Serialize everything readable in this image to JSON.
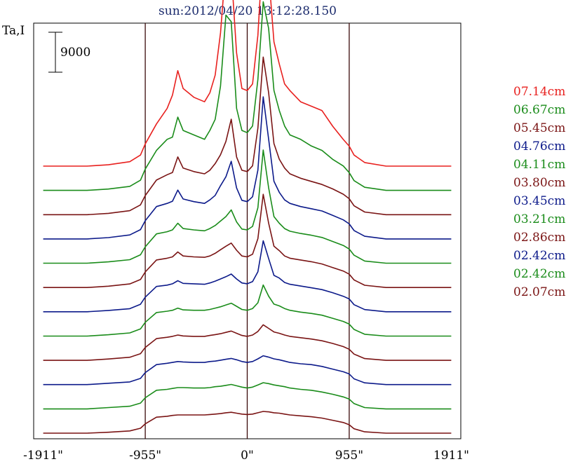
{
  "chart_data": {
    "type": "line",
    "title": "sun:2012/04/20 13:12:28.150",
    "ylabel": "Ta,I",
    "scale_bar_label": "9000",
    "xlim": [
      -2000,
      2000
    ],
    "x_ticks": [
      {
        "value": -1911,
        "label": "-1911\""
      },
      {
        "value": -955,
        "label": "-955\""
      },
      {
        "value": 0,
        "label": "0\""
      },
      {
        "value": 955,
        "label": "955\""
      },
      {
        "value": 1911,
        "label": "1911\""
      }
    ],
    "vertical_lines": [
      {
        "value": -955,
        "color": "#3a0a0a"
      },
      {
        "value": 0,
        "color": "#3a0a0a"
      },
      {
        "value": 955,
        "color": "#3a0a0a"
      }
    ],
    "x": [
      -1911,
      -1700,
      -1500,
      -1300,
      -1100,
      -1000,
      -955,
      -850,
      -750,
      -700,
      -650,
      -600,
      -500,
      -400,
      -350,
      -300,
      -250,
      -200,
      -150,
      -100,
      -50,
      0,
      50,
      100,
      150,
      200,
      250,
      300,
      350,
      400,
      500,
      600,
      700,
      800,
      900,
      955,
      1000,
      1100,
      1300,
      1500,
      1700,
      1911
    ],
    "series": [
      {
        "name": "07.14cm",
        "color": "#e8201e",
        "offset": 0,
        "values": [
          0,
          0,
          0,
          300,
          1000,
          2500,
          5000,
          9500,
          13000,
          16000,
          21500,
          17500,
          15500,
          14500,
          16500,
          20500,
          30000,
          45500,
          44000,
          25500,
          17500,
          17000,
          18500,
          29500,
          50000,
          43500,
          28000,
          23000,
          18500,
          17000,
          14500,
          13500,
          12500,
          9000,
          6000,
          4500,
          2500,
          800,
          0,
          0,
          0,
          0
        ]
      },
      {
        "name": "06.67cm",
        "color": "#1a8c1a",
        "offset": 0,
        "values": [
          0,
          0,
          0,
          300,
          900,
          2300,
          4800,
          9000,
          11500,
          12000,
          16500,
          13500,
          12500,
          11500,
          13500,
          16000,
          23500,
          39500,
          38000,
          18500,
          13500,
          13000,
          14500,
          25000,
          42500,
          36500,
          22500,
          18000,
          14500,
          12500,
          11500,
          10000,
          9000,
          7000,
          5500,
          4000,
          2200,
          700,
          0,
          0,
          0,
          0
        ]
      },
      {
        "name": "05.45cm",
        "color": "#7a1414",
        "offset": 0,
        "values": [
          0,
          0,
          0,
          300,
          900,
          2200,
          4300,
          7800,
          9000,
          9500,
          13000,
          10500,
          9700,
          9200,
          10000,
          11500,
          13500,
          16500,
          21500,
          13000,
          10000,
          9700,
          11000,
          19500,
          35500,
          27500,
          16000,
          12500,
          10500,
          9200,
          8200,
          7500,
          6800,
          5800,
          4600,
          3600,
          2000,
          600,
          0,
          0,
          0,
          0
        ]
      },
      {
        "name": "04.76cm",
        "color": "#0c1a8a",
        "offset": 0,
        "values": [
          0,
          0,
          0,
          300,
          900,
          2100,
          4100,
          7300,
          8000,
          8500,
          11000,
          9000,
          8400,
          8000,
          8800,
          9800,
          12000,
          14000,
          17500,
          11500,
          8700,
          8400,
          9500,
          15500,
          32000,
          22500,
          13000,
          10500,
          8800,
          8000,
          7300,
          6800,
          6300,
          5300,
          4300,
          3400,
          1900,
          600,
          0,
          0,
          0,
          0
        ]
      },
      {
        "name": "04.11cm",
        "color": "#1a8c1a",
        "offset": 0,
        "values": [
          0,
          0,
          0,
          300,
          800,
          1900,
          3700,
          6600,
          7100,
          7500,
          9000,
          7800,
          7500,
          7300,
          7800,
          8500,
          9500,
          10500,
          12000,
          9300,
          7700,
          7500,
          8300,
          12500,
          25500,
          17000,
          10500,
          9000,
          7800,
          7200,
          6700,
          6300,
          5800,
          4900,
          4000,
          3200,
          1800,
          500,
          0,
          0,
          0,
          0
        ]
      },
      {
        "name": "03.80cm",
        "color": "#7a1414",
        "offset": 0,
        "values": [
          0,
          0,
          0,
          300,
          800,
          1800,
          3500,
          6200,
          6600,
          6900,
          8000,
          7100,
          6900,
          6800,
          7100,
          7700,
          8500,
          9300,
          10000,
          8400,
          7100,
          6900,
          7500,
          11000,
          21000,
          14500,
          9300,
          8300,
          7100,
          6600,
          6200,
          5800,
          5300,
          4500,
          3700,
          3000,
          1700,
          500,
          0,
          0,
          0,
          0
        ]
      },
      {
        "name": "03.45cm",
        "color": "#0c1a8a",
        "offset": 0,
        "values": [
          0,
          0,
          0,
          300,
          700,
          1700,
          3300,
          5700,
          6000,
          6300,
          7000,
          6400,
          6300,
          6200,
          6500,
          6900,
          7400,
          7900,
          8500,
          7400,
          6500,
          6300,
          6800,
          9000,
          16000,
          12000,
          8200,
          7600,
          6600,
          6200,
          5800,
          5400,
          5000,
          4300,
          3500,
          2900,
          1600,
          500,
          0,
          0,
          0,
          0
        ]
      },
      {
        "name": "03.21cm",
        "color": "#1a8c1a",
        "offset": 0,
        "values": [
          0,
          0,
          0,
          300,
          700,
          1600,
          3100,
          5300,
          5600,
          5800,
          6300,
          5900,
          5800,
          5800,
          6000,
          6300,
          6600,
          7000,
          7400,
          6700,
          6000,
          5800,
          6200,
          7500,
          11500,
          9000,
          7200,
          6800,
          6200,
          5800,
          5400,
          5100,
          4700,
          4000,
          3300,
          2700,
          1500,
          400,
          0,
          0,
          0,
          0
        ]
      },
      {
        "name": "02.86cm",
        "color": "#7a1414",
        "offset": 0,
        "values": [
          0,
          0,
          0,
          300,
          700,
          1500,
          2900,
          4900,
          5200,
          5400,
          5700,
          5500,
          5400,
          5400,
          5600,
          5800,
          6000,
          6300,
          6600,
          6100,
          5600,
          5400,
          5700,
          6500,
          8000,
          7200,
          6400,
          6100,
          5700,
          5400,
          5100,
          4800,
          4400,
          3800,
          3100,
          2500,
          1400,
          400,
          0,
          0,
          0,
          0
        ]
      },
      {
        "name": "02.42cm",
        "color": "#0c1a8a",
        "offset": 0,
        "values": [
          0,
          0,
          0,
          300,
          600,
          1400,
          2700,
          4500,
          4800,
          5000,
          5200,
          5100,
          5000,
          5000,
          5200,
          5300,
          5500,
          5700,
          5900,
          5600,
          5200,
          5000,
          5200,
          5800,
          6500,
          6200,
          5800,
          5600,
          5300,
          5000,
          4700,
          4500,
          4100,
          3500,
          2900,
          2400,
          1300,
          400,
          0,
          0,
          0,
          0
        ]
      },
      {
        "name": "02.42cm",
        "color": "#1a8c1a",
        "offset": 0,
        "values": [
          0,
          0,
          0,
          300,
          600,
          1300,
          2500,
          4200,
          4400,
          4600,
          4800,
          4800,
          4700,
          4700,
          4800,
          5000,
          5100,
          5300,
          5500,
          5200,
          4900,
          4700,
          4900,
          5400,
          5900,
          5700,
          5400,
          5200,
          5000,
          4700,
          4400,
          4200,
          3800,
          3300,
          2700,
          2200,
          1200,
          300,
          0,
          0,
          0,
          0
        ]
      },
      {
        "name": "02.07cm",
        "color": "#7a1414",
        "offset": 0,
        "values": [
          0,
          0,
          0,
          200,
          500,
          1100,
          2100,
          3600,
          3800,
          4000,
          4100,
          4100,
          4100,
          4100,
          4200,
          4300,
          4400,
          4600,
          4700,
          4500,
          4300,
          4200,
          4300,
          4600,
          4900,
          4800,
          4600,
          4500,
          4300,
          4100,
          3900,
          3700,
          3400,
          2900,
          2400,
          1900,
          1000,
          300,
          0,
          0,
          0,
          0
        ]
      }
    ]
  }
}
